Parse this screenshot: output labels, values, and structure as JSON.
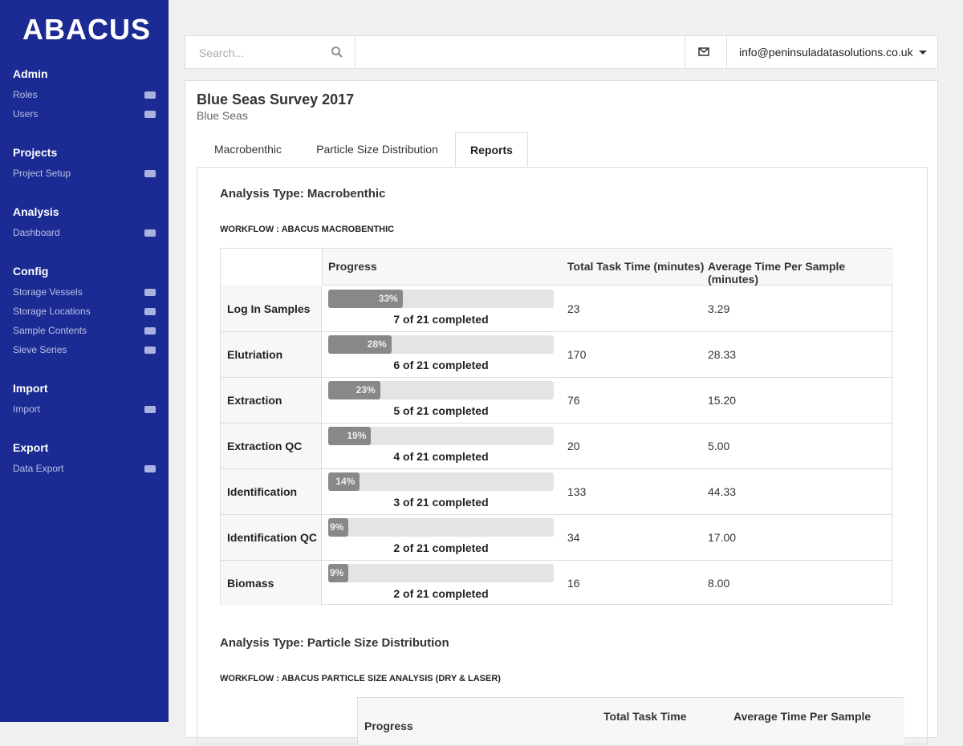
{
  "sidebar": {
    "logo": "ABACUS",
    "sections": [
      {
        "title": "Admin",
        "items": [
          "Roles",
          "Users"
        ]
      },
      {
        "title": "Projects",
        "items": [
          "Project Setup"
        ]
      },
      {
        "title": "Analysis",
        "items": [
          "Dashboard"
        ]
      },
      {
        "title": "Config",
        "items": [
          "Storage Vessels",
          "Storage Locations",
          "Sample Contents",
          "Sieve Series"
        ]
      },
      {
        "title": "Import",
        "items": [
          "Import"
        ]
      },
      {
        "title": "Export",
        "items": [
          "Data Export"
        ]
      }
    ]
  },
  "header": {
    "search_placeholder": "Search...",
    "email": "info@peninsuladatasolutions.co.uk"
  },
  "project": {
    "title": "Blue Seas Survey 2017",
    "subtitle": "Blue Seas"
  },
  "tabs": {
    "items": [
      "Macrobenthic",
      "Particle Size Distribution",
      "Reports"
    ],
    "active": 2
  },
  "sections": [
    {
      "heading": "Analysis Type: Macrobenthic",
      "workflow": "WORKFLOW : ABACUS MACROBENTHIC",
      "columns": [
        "Progress",
        "Total Task Time (minutes)",
        "Average Time Per Sample (minutes)"
      ],
      "rows": [
        {
          "task": "Log In Samples",
          "progress": {
            "value": 33,
            "label": "33%"
          },
          "completed": "7 of 21 completed",
          "total": 23,
          "average": "3.29"
        },
        {
          "task": "Elutriation",
          "progress": {
            "value": 28,
            "label": "28%"
          },
          "completed": "6 of 21 completed",
          "total": 170,
          "average": "28.33"
        },
        {
          "task": "Extraction",
          "progress": {
            "value": 23,
            "label": "23%"
          },
          "completed": "5 of 21 completed",
          "total": 76,
          "average": "15.20"
        },
        {
          "task": "Extraction QC",
          "progress": {
            "value": 19,
            "label": "19%"
          },
          "completed": "4 of 21 completed",
          "total": 20,
          "average": "5.00"
        },
        {
          "task": "Identification",
          "progress": {
            "value": 14,
            "label": "14%"
          },
          "completed": "3 of 21 completed",
          "total": 133,
          "average": "44.33"
        },
        {
          "task": "Identification QC",
          "progress": {
            "value": 9,
            "label": "9%"
          },
          "completed": "2 of 21 completed",
          "total": 34,
          "average": "17.00"
        },
        {
          "task": "Biomass",
          "progress": {
            "value": 9,
            "label": "9%"
          },
          "completed": "2 of 21 completed",
          "total": 16,
          "average": "8.00"
        }
      ]
    },
    {
      "heading": "Analysis Type: Particle Size Distribution",
      "workflow": "WORKFLOW : ABACUS PARTICLE SIZE ANALYSIS (DRY & LASER)",
      "columns": [
        "Progress",
        "Total Task Time",
        "Average Time Per Sample"
      ],
      "rows": []
    }
  ]
}
